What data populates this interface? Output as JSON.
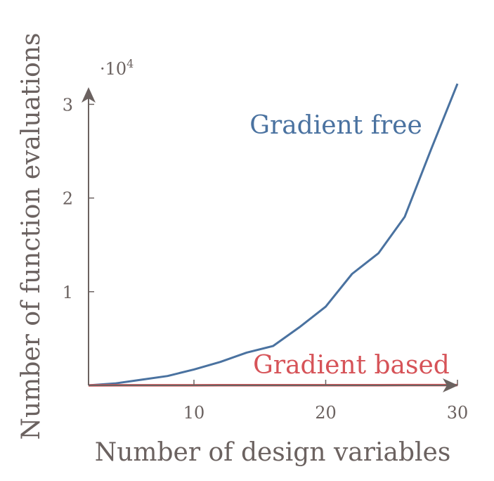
{
  "colors": {
    "axis": "#6b6260",
    "gradient_free": "#4a72a0",
    "gradient_based": "#d65358"
  },
  "chart_data": {
    "type": "line",
    "title": "",
    "xlabel": "Number of design variables",
    "ylabel": "Number of function evaluations",
    "y_multiplier_label": "·10",
    "y_multiplier_exponent": "4",
    "xlim": [
      2,
      30
    ],
    "ylim": [
      0,
      3.2
    ],
    "xticks": [
      10,
      20,
      30
    ],
    "yticks": [
      1,
      2,
      3
    ],
    "grid": false,
    "legend": "inline labels",
    "series": [
      {
        "name": "Gradient free",
        "color": "#4a72a0",
        "x": [
          2,
          4,
          6,
          8,
          10,
          12,
          14,
          16,
          18,
          20,
          22,
          24,
          26,
          28,
          30
        ],
        "y": [
          0.0,
          0.02,
          0.06,
          0.1,
          0.17,
          0.25,
          0.35,
          0.42,
          0.62,
          0.84,
          1.19,
          1.41,
          1.8,
          2.52,
          3.22
        ]
      },
      {
        "name": "Gradient based",
        "color": "#d65358",
        "x": [
          2,
          4,
          6,
          8,
          10,
          12,
          14,
          16,
          18,
          20,
          22,
          24,
          26,
          28,
          30
        ],
        "y": [
          0.0003,
          0.0005,
          0.0007,
          0.0009,
          0.0011,
          0.0013,
          0.0015,
          0.0017,
          0.0019,
          0.0021,
          0.0023,
          0.0025,
          0.0027,
          0.0029,
          0.0031
        ]
      }
    ]
  }
}
